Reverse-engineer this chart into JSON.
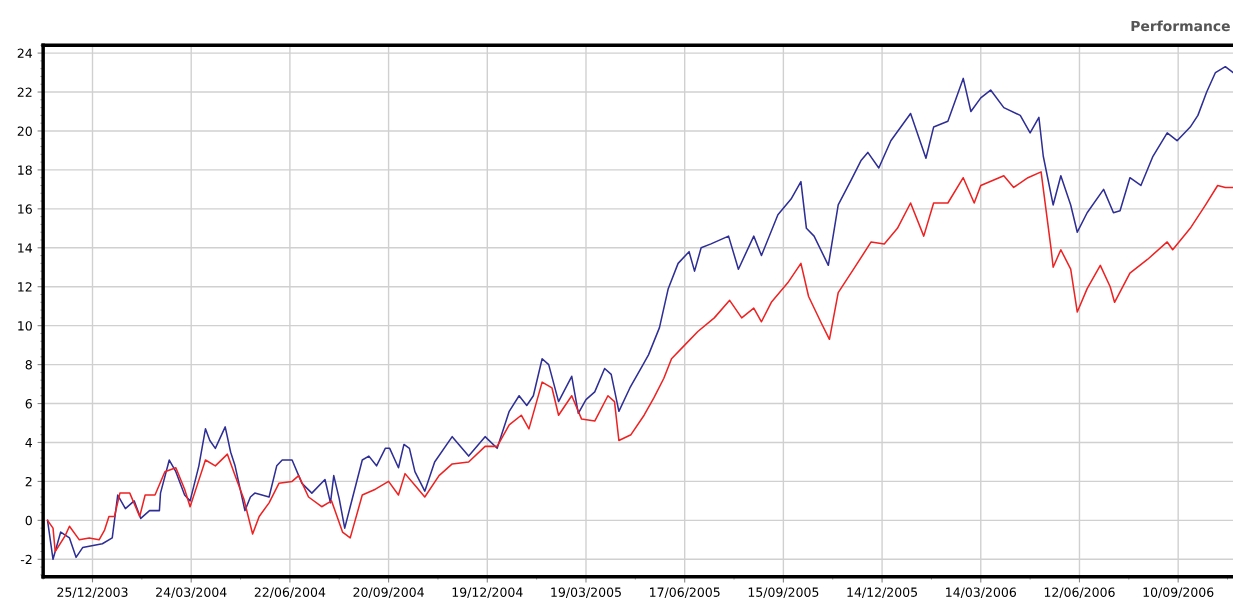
{
  "chart_data": {
    "type": "line",
    "title": "Performance",
    "grid": true,
    "marker": "none",
    "line_style": "solid",
    "legend": false,
    "xlim": [
      "2003-11-12",
      "2006-10-30"
    ],
    "ylim": [
      -2.9,
      24.4
    ],
    "xticks": [
      {
        "value": "2003-12-25",
        "label": "25/12/2003"
      },
      {
        "value": "2004-03-24",
        "label": "24/03/2004"
      },
      {
        "value": "2004-06-22",
        "label": "22/06/2004"
      },
      {
        "value": "2004-09-20",
        "label": "20/09/2004"
      },
      {
        "value": "2004-12-19",
        "label": "19/12/2004"
      },
      {
        "value": "2005-03-19",
        "label": "19/03/2005"
      },
      {
        "value": "2005-06-17",
        "label": "17/06/2005"
      },
      {
        "value": "2005-09-15",
        "label": "15/09/2005"
      },
      {
        "value": "2005-12-14",
        "label": "14/12/2005"
      },
      {
        "value": "2006-03-14",
        "label": "14/03/2006"
      },
      {
        "value": "2006-06-12",
        "label": "12/06/2006"
      },
      {
        "value": "2006-09-10",
        "label": "10/09/2006"
      }
    ],
    "yticks": [
      -2,
      0,
      2,
      4,
      6,
      8,
      10,
      12,
      14,
      16,
      18,
      20,
      22,
      24
    ],
    "series": [
      {
        "color": "#2e2e96",
        "x": [
          "2003-11-14",
          "2003-11-19",
          "2003-11-26",
          "2003-12-04",
          "2003-12-10",
          "2003-12-16",
          "2004-01-03",
          "2004-01-12",
          "2004-01-17",
          "2004-01-24",
          "2004-02-01",
          "2004-02-07",
          "2004-02-15",
          "2004-02-24",
          "2004-02-25",
          "2004-03-04",
          "2004-03-10",
          "2004-03-18",
          "2004-03-23",
          "2004-03-31",
          "2004-04-06",
          "2004-04-10",
          "2004-04-15",
          "2004-04-24",
          "2004-04-29",
          "2004-05-03",
          "2004-05-12",
          "2004-05-17",
          "2004-05-21",
          "2004-06-03",
          "2004-06-10",
          "2004-06-15",
          "2004-06-24",
          "2004-07-03",
          "2004-07-12",
          "2004-07-24",
          "2004-07-29",
          "2004-08-01",
          "2004-08-06",
          "2004-08-11",
          "2004-08-16",
          "2004-08-27",
          "2004-09-02",
          "2004-09-09",
          "2004-09-17",
          "2004-09-21",
          "2004-09-29",
          "2004-10-04",
          "2004-10-09",
          "2004-10-14",
          "2004-10-23",
          "2004-11-01",
          "2004-11-17",
          "2004-12-02",
          "2004-12-17",
          "2004-12-28",
          "2005-01-08",
          "2005-01-17",
          "2005-01-24",
          "2005-01-30",
          "2005-02-07",
          "2005-02-13",
          "2005-02-22",
          "2005-03-06",
          "2005-03-12",
          "2005-03-19",
          "2005-03-27",
          "2005-04-05",
          "2005-04-11",
          "2005-04-18",
          "2005-04-28",
          "2005-05-09",
          "2005-05-15",
          "2005-05-25",
          "2005-06-02",
          "2005-06-11",
          "2005-06-21",
          "2005-06-26",
          "2005-07-02",
          "2005-07-11",
          "2005-07-27",
          "2005-08-05",
          "2005-08-19",
          "2005-08-26",
          "2005-09-10",
          "2005-09-22",
          "2005-10-01",
          "2005-10-06",
          "2005-10-13",
          "2005-10-26",
          "2005-11-04",
          "2005-11-16",
          "2005-11-25",
          "2005-12-01",
          "2005-12-11",
          "2005-12-22",
          "2006-01-09",
          "2006-01-23",
          "2006-01-30",
          "2006-02-12",
          "2006-02-26",
          "2006-03-05",
          "2006-03-14",
          "2006-03-23",
          "2006-04-04",
          "2006-04-19",
          "2006-04-28",
          "2006-05-06",
          "2006-05-10",
          "2006-05-19",
          "2006-05-26",
          "2006-06-04",
          "2006-06-10",
          "2006-06-19",
          "2006-07-04",
          "2006-07-13",
          "2006-07-19",
          "2006-07-28",
          "2006-08-07",
          "2006-08-18",
          "2006-08-31",
          "2006-09-09",
          "2006-09-21",
          "2006-09-28",
          "2006-10-06",
          "2006-10-14",
          "2006-10-23",
          "2006-10-30"
        ],
        "values": [
          0,
          -2.0,
          -0.6,
          -0.9,
          -1.9,
          -1.4,
          -1.2,
          -0.9,
          1.3,
          0.6,
          1.0,
          0.1,
          0.5,
          0.5,
          1.4,
          3.1,
          2.5,
          1.3,
          1.0,
          2.8,
          4.7,
          4.1,
          3.7,
          4.8,
          3.5,
          2.8,
          0.5,
          1.2,
          1.4,
          1.2,
          2.8,
          3.1,
          3.1,
          1.9,
          1.4,
          2.1,
          0.9,
          2.3,
          1.1,
          -0.4,
          0.7,
          3.1,
          3.3,
          2.8,
          3.7,
          3.7,
          2.7,
          3.9,
          3.7,
          2.5,
          1.5,
          3.0,
          4.3,
          3.3,
          4.3,
          3.7,
          5.6,
          6.4,
          5.9,
          6.4,
          8.3,
          8.0,
          6.1,
          7.4,
          5.5,
          6.2,
          6.6,
          7.8,
          7.5,
          5.6,
          6.8,
          7.9,
          8.5,
          9.9,
          11.9,
          13.2,
          13.8,
          12.8,
          14.0,
          14.2,
          14.6,
          12.9,
          14.6,
          13.6,
          15.7,
          16.5,
          17.4,
          15.0,
          14.6,
          13.1,
          16.2,
          17.5,
          18.5,
          18.9,
          18.1,
          19.5,
          20.9,
          18.6,
          20.2,
          20.5,
          22.7,
          21.0,
          21.7,
          22.1,
          21.2,
          20.8,
          19.9,
          20.7,
          18.7,
          16.2,
          17.7,
          16.2,
          14.8,
          15.8,
          17.0,
          15.8,
          15.9,
          17.6,
          17.2,
          18.7,
          19.9,
          19.5,
          20.2,
          20.8,
          22.0,
          23.0,
          23.3,
          23.0
        ]
      },
      {
        "color": "#ee2222",
        "x": [
          "2003-11-14",
          "2003-11-19",
          "2003-11-21",
          "2003-11-30",
          "2003-12-04",
          "2003-12-13",
          "2003-12-22",
          "2003-12-31",
          "2004-01-05",
          "2004-01-09",
          "2004-01-14",
          "2004-01-19",
          "2004-01-28",
          "2004-02-06",
          "2004-02-11",
          "2004-02-20",
          "2004-02-29",
          "2004-03-10",
          "2004-03-18",
          "2004-03-23",
          "2004-03-30",
          "2004-04-06",
          "2004-04-15",
          "2004-04-26",
          "2004-05-03",
          "2004-05-11",
          "2004-05-19",
          "2004-05-25",
          "2004-06-03",
          "2004-06-12",
          "2004-06-24",
          "2004-06-30",
          "2004-07-09",
          "2004-07-21",
          "2004-07-30",
          "2004-08-09",
          "2004-08-16",
          "2004-08-27",
          "2004-09-08",
          "2004-09-20",
          "2004-09-29",
          "2004-10-05",
          "2004-10-14",
          "2004-10-23",
          "2004-11-05",
          "2004-11-17",
          "2004-12-02",
          "2004-12-17",
          "2004-12-28",
          "2005-01-08",
          "2005-01-19",
          "2005-01-26",
          "2005-02-07",
          "2005-02-16",
          "2005-02-22",
          "2005-03-06",
          "2005-03-15",
          "2005-03-27",
          "2005-04-08",
          "2005-04-14",
          "2005-04-18",
          "2005-04-29",
          "2005-05-11",
          "2005-05-20",
          "2005-05-29",
          "2005-06-05",
          "2005-06-17",
          "2005-06-29",
          "2005-07-14",
          "2005-07-28",
          "2005-08-08",
          "2005-08-19",
          "2005-08-26",
          "2005-09-04",
          "2005-09-19",
          "2005-10-01",
          "2005-10-08",
          "2005-10-19",
          "2005-10-27",
          "2005-11-04",
          "2005-11-18",
          "2005-12-04",
          "2005-12-16",
          "2005-12-28",
          "2006-01-09",
          "2006-01-21",
          "2006-01-30",
          "2006-02-12",
          "2006-02-26",
          "2006-03-08",
          "2006-03-14",
          "2006-04-04",
          "2006-04-13",
          "2006-04-26",
          "2006-05-08",
          "2006-05-17",
          "2006-05-19",
          "2006-05-26",
          "2006-06-04",
          "2006-06-10",
          "2006-06-19",
          "2006-07-01",
          "2006-07-10",
          "2006-07-14",
          "2006-07-28",
          "2006-08-13",
          "2006-08-31",
          "2006-09-05",
          "2006-09-21",
          "2006-10-05",
          "2006-10-16",
          "2006-10-23",
          "2006-10-30"
        ],
        "values": [
          0,
          -0.4,
          -1.6,
          -0.8,
          -0.3,
          -1.0,
          -0.9,
          -1.0,
          -0.5,
          0.2,
          0.2,
          1.4,
          1.4,
          0.2,
          1.3,
          1.3,
          2.5,
          2.7,
          1.6,
          0.7,
          1.9,
          3.1,
          2.8,
          3.4,
          2.3,
          1.1,
          -0.7,
          0.2,
          0.9,
          1.9,
          2.0,
          2.3,
          1.2,
          0.7,
          1.0,
          -0.6,
          -0.9,
          1.3,
          1.6,
          2.0,
          1.3,
          2.4,
          1.8,
          1.2,
          2.3,
          2.9,
          3.0,
          3.8,
          3.8,
          4.9,
          5.4,
          4.7,
          7.1,
          6.8,
          5.4,
          6.4,
          5.2,
          5.1,
          6.4,
          6.1,
          4.1,
          4.4,
          5.4,
          6.3,
          7.3,
          8.3,
          9.0,
          9.7,
          10.4,
          11.3,
          10.4,
          10.9,
          10.2,
          11.2,
          12.2,
          13.2,
          11.5,
          10.2,
          9.3,
          11.7,
          12.9,
          14.3,
          14.2,
          15.0,
          16.3,
          14.6,
          16.3,
          16.3,
          17.6,
          16.3,
          17.2,
          17.7,
          17.1,
          17.6,
          17.9,
          14.0,
          13.0,
          13.9,
          12.9,
          10.7,
          11.9,
          13.1,
          12.0,
          11.2,
          12.7,
          13.4,
          14.3,
          13.9,
          15.0,
          16.2,
          17.2,
          17.1,
          17.1
        ]
      }
    ]
  }
}
